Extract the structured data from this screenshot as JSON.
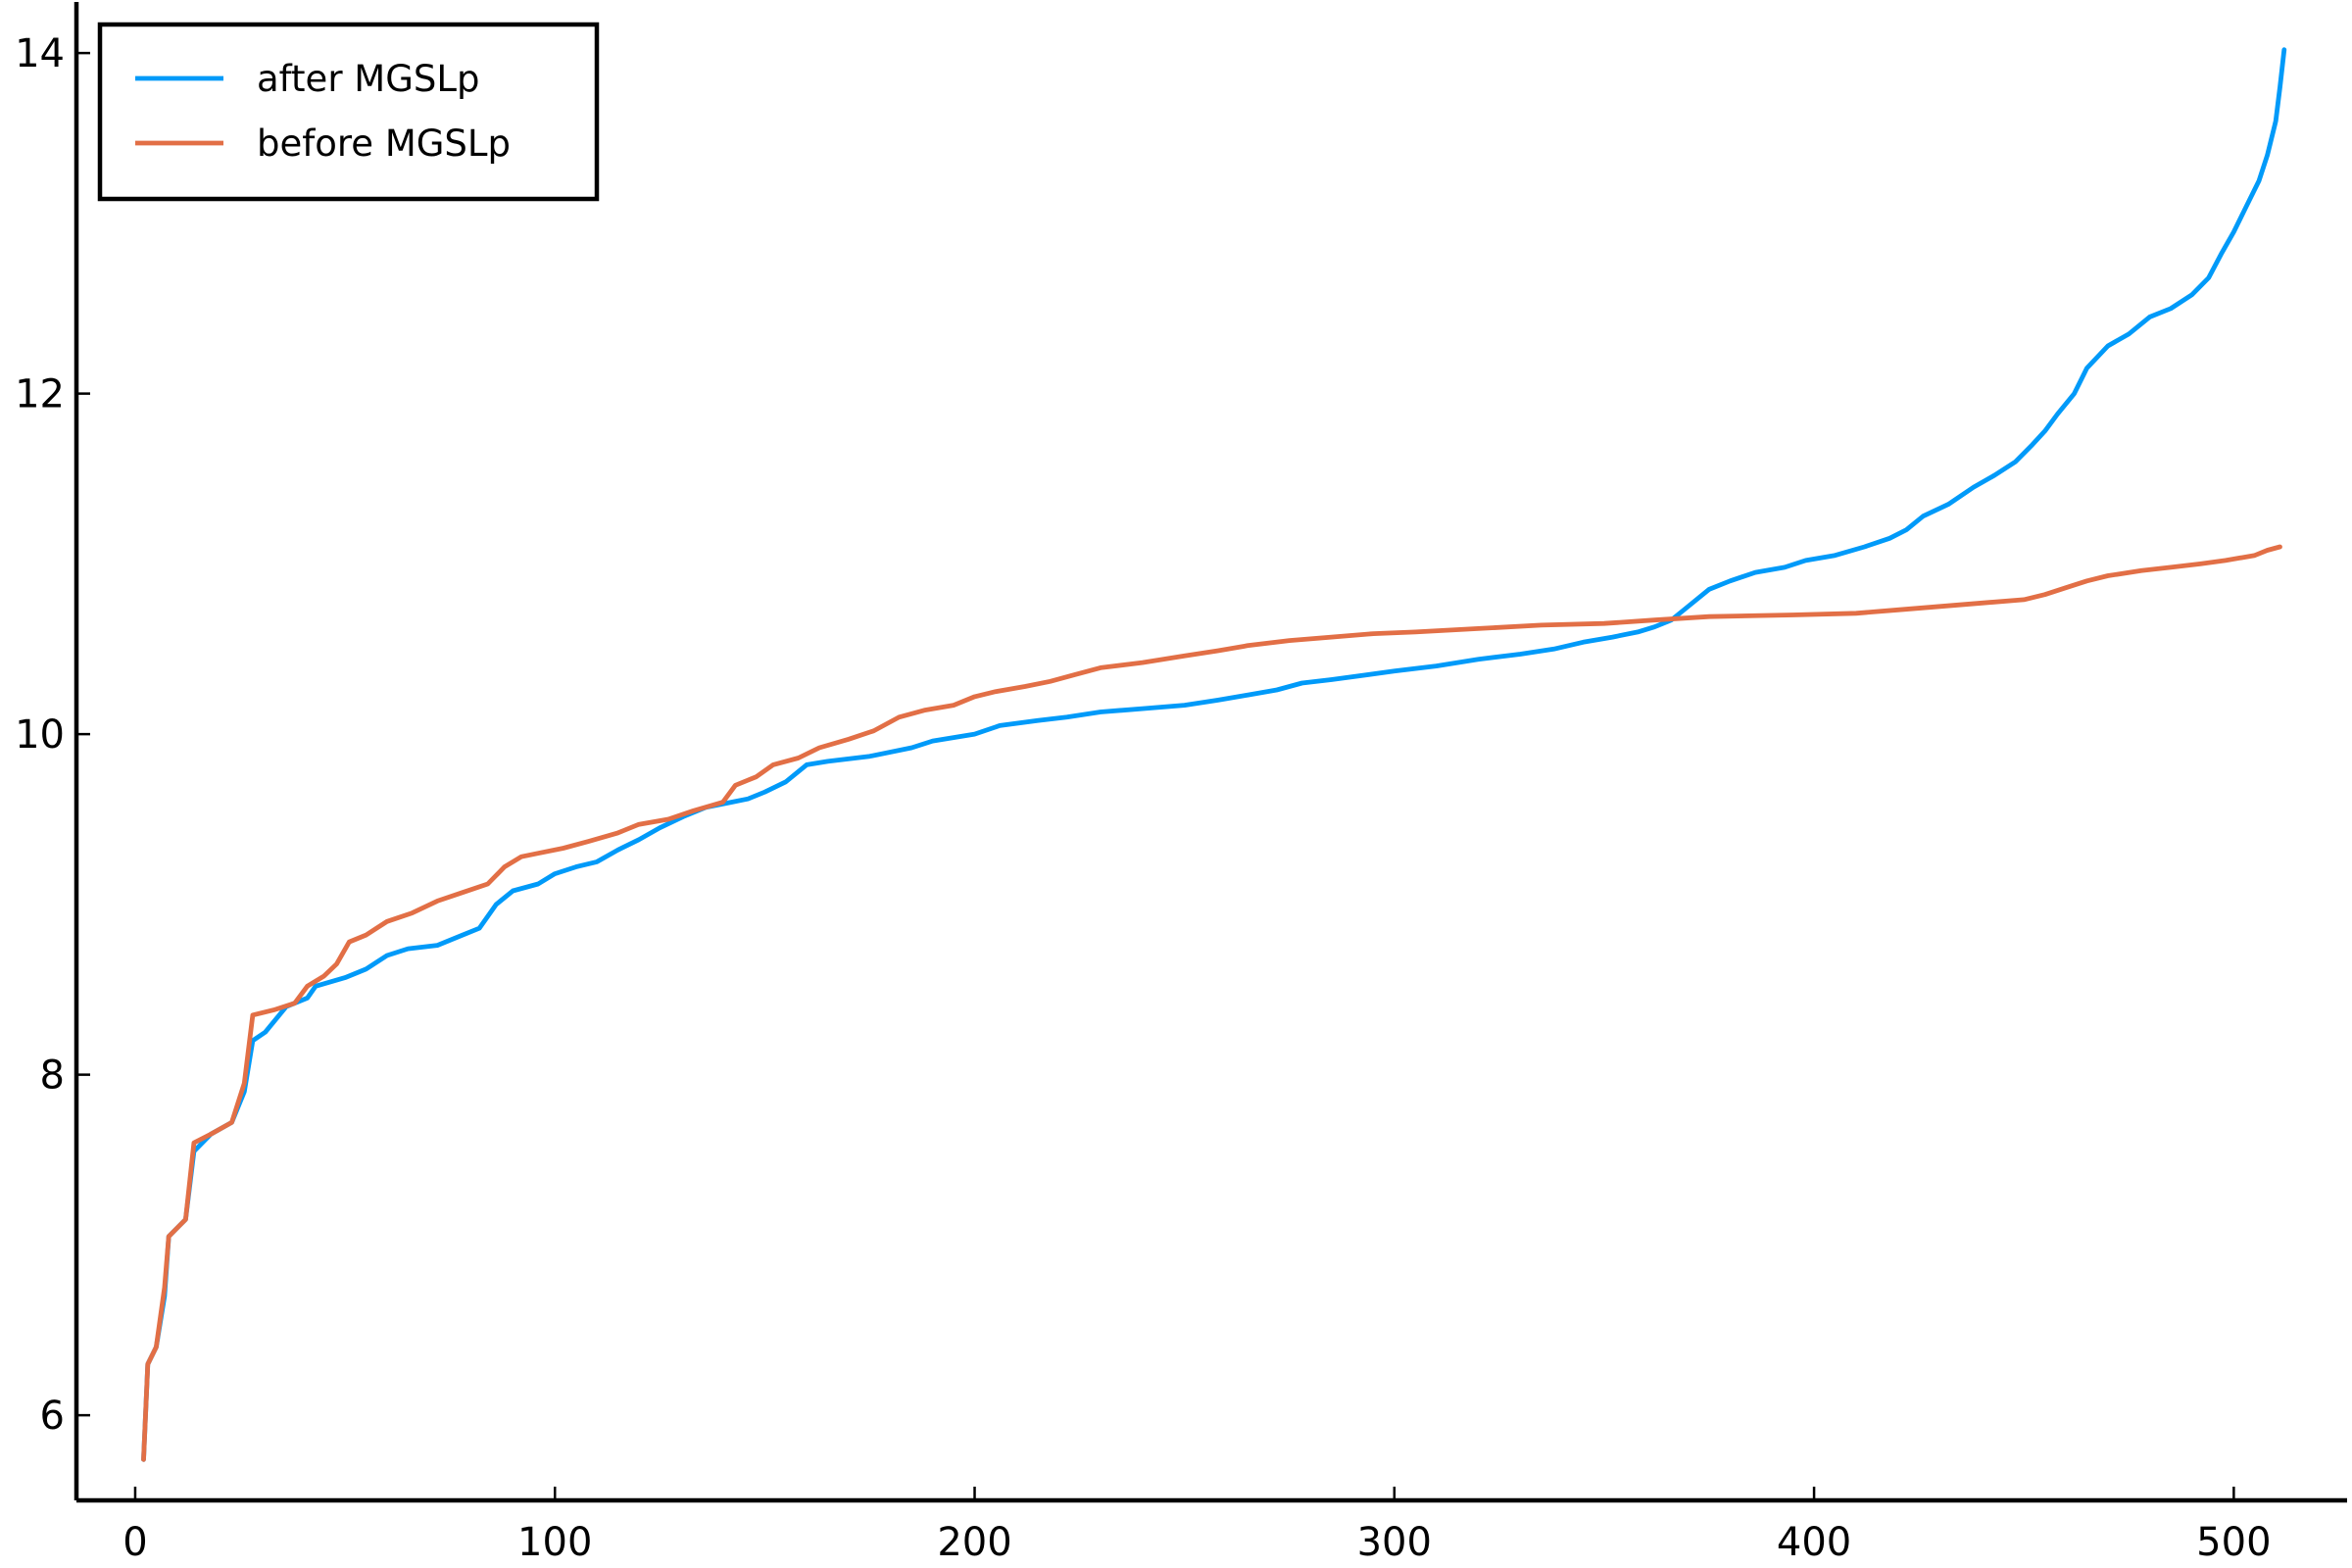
{
  "chart_data": {
    "type": "line",
    "title": "",
    "xlabel": "",
    "ylabel": "",
    "xlim": [
      -14,
      527
    ],
    "ylim": [
      5.5,
      14.3
    ],
    "xticks": [
      0,
      100,
      200,
      300,
      400,
      500
    ],
    "yticks": [
      6,
      8,
      10,
      12,
      14
    ],
    "xtick_labels": [
      "0",
      "100",
      "200",
      "300",
      "400",
      "500"
    ],
    "ytick_labels": [
      "6",
      "8",
      "10",
      "12",
      "14"
    ],
    "grid": false,
    "legend_position": "top-left",
    "series": [
      {
        "name": "after MGSLp",
        "color": "#009af9",
        "points": [
          [
            2,
            5.74
          ],
          [
            3,
            6.3
          ],
          [
            5,
            6.4
          ],
          [
            7,
            6.7
          ],
          [
            8,
            7.05
          ],
          [
            10,
            7.1
          ],
          [
            12,
            7.15
          ],
          [
            14,
            7.55
          ],
          [
            18,
            7.65
          ],
          [
            23,
            7.72
          ],
          [
            26,
            7.9
          ],
          [
            28,
            8.2
          ],
          [
            31,
            8.25
          ],
          [
            36,
            8.4
          ],
          [
            41,
            8.45
          ],
          [
            43,
            8.52
          ],
          [
            50,
            8.57
          ],
          [
            55,
            8.62
          ],
          [
            60,
            8.7
          ],
          [
            65,
            8.74
          ],
          [
            72,
            8.76
          ],
          [
            78,
            8.82
          ],
          [
            82,
            8.86
          ],
          [
            86,
            9.0
          ],
          [
            90,
            9.08
          ],
          [
            96,
            9.12
          ],
          [
            100,
            9.18
          ],
          [
            105,
            9.22
          ],
          [
            110,
            9.25
          ],
          [
            115,
            9.32
          ],
          [
            120,
            9.38
          ],
          [
            125,
            9.45
          ],
          [
            131,
            9.52
          ],
          [
            136,
            9.57
          ],
          [
            142,
            9.6
          ],
          [
            146,
            9.62
          ],
          [
            150,
            9.66
          ],
          [
            155,
            9.72
          ],
          [
            160,
            9.82
          ],
          [
            165,
            9.84
          ],
          [
            175,
            9.87
          ],
          [
            185,
            9.92
          ],
          [
            190,
            9.96
          ],
          [
            200,
            10.0
          ],
          [
            206,
            10.05
          ],
          [
            215,
            10.08
          ],
          [
            222,
            10.1
          ],
          [
            230,
            10.13
          ],
          [
            240,
            10.15
          ],
          [
            250,
            10.17
          ],
          [
            258,
            10.2
          ],
          [
            265,
            10.23
          ],
          [
            272,
            10.26
          ],
          [
            278,
            10.3
          ],
          [
            285,
            10.32
          ],
          [
            300,
            10.37
          ],
          [
            310,
            10.4
          ],
          [
            320,
            10.44
          ],
          [
            330,
            10.47
          ],
          [
            338,
            10.5
          ],
          [
            345,
            10.54
          ],
          [
            352,
            10.57
          ],
          [
            358,
            10.6
          ],
          [
            362,
            10.63
          ],
          [
            366,
            10.67
          ],
          [
            370,
            10.75
          ],
          [
            375,
            10.85
          ],
          [
            380,
            10.9
          ],
          [
            386,
            10.95
          ],
          [
            393,
            10.98
          ],
          [
            398,
            11.02
          ],
          [
            405,
            11.05
          ],
          [
            412,
            11.1
          ],
          [
            418,
            11.15
          ],
          [
            422,
            11.2
          ],
          [
            426,
            11.28
          ],
          [
            432,
            11.35
          ],
          [
            438,
            11.45
          ],
          [
            443,
            11.52
          ],
          [
            448,
            11.6
          ],
          [
            452,
            11.7
          ],
          [
            455,
            11.78
          ],
          [
            458,
            11.88
          ],
          [
            462,
            12.0
          ],
          [
            465,
            12.15
          ],
          [
            470,
            12.28
          ],
          [
            475,
            12.35
          ],
          [
            480,
            12.45
          ],
          [
            485,
            12.5
          ],
          [
            490,
            12.58
          ],
          [
            494,
            12.68
          ],
          [
            497,
            12.82
          ],
          [
            500,
            12.95
          ],
          [
            503,
            13.1
          ],
          [
            506,
            13.25
          ],
          [
            508,
            13.4
          ],
          [
            510,
            13.6
          ],
          [
            511,
            13.8
          ],
          [
            512,
            14.02
          ]
        ]
      },
      {
        "name": "before MGSLp",
        "color": "#e26f46",
        "points": [
          [
            2,
            5.74
          ],
          [
            3,
            6.3
          ],
          [
            5,
            6.4
          ],
          [
            7,
            6.75
          ],
          [
            8,
            7.05
          ],
          [
            10,
            7.1
          ],
          [
            12,
            7.15
          ],
          [
            14,
            7.6
          ],
          [
            18,
            7.65
          ],
          [
            23,
            7.72
          ],
          [
            26,
            7.95
          ],
          [
            28,
            8.35
          ],
          [
            33,
            8.38
          ],
          [
            38,
            8.42
          ],
          [
            41,
            8.52
          ],
          [
            45,
            8.58
          ],
          [
            48,
            8.65
          ],
          [
            51,
            8.78
          ],
          [
            55,
            8.82
          ],
          [
            60,
            8.9
          ],
          [
            66,
            8.95
          ],
          [
            72,
            9.02
          ],
          [
            78,
            9.07
          ],
          [
            84,
            9.12
          ],
          [
            88,
            9.22
          ],
          [
            92,
            9.28
          ],
          [
            96,
            9.3
          ],
          [
            102,
            9.33
          ],
          [
            108,
            9.37
          ],
          [
            115,
            9.42
          ],
          [
            120,
            9.47
          ],
          [
            127,
            9.5
          ],
          [
            133,
            9.55
          ],
          [
            140,
            9.6
          ],
          [
            143,
            9.7
          ],
          [
            148,
            9.75
          ],
          [
            152,
            9.82
          ],
          [
            158,
            9.86
          ],
          [
            163,
            9.92
          ],
          [
            170,
            9.97
          ],
          [
            176,
            10.02
          ],
          [
            182,
            10.1
          ],
          [
            188,
            10.14
          ],
          [
            195,
            10.17
          ],
          [
            200,
            10.22
          ],
          [
            205,
            10.25
          ],
          [
            212,
            10.28
          ],
          [
            218,
            10.31
          ],
          [
            224,
            10.35
          ],
          [
            230,
            10.39
          ],
          [
            240,
            10.42
          ],
          [
            250,
            10.46
          ],
          [
            258,
            10.49
          ],
          [
            265,
            10.52
          ],
          [
            275,
            10.55
          ],
          [
            285,
            10.57
          ],
          [
            295,
            10.59
          ],
          [
            305,
            10.6
          ],
          [
            320,
            10.62
          ],
          [
            335,
            10.64
          ],
          [
            350,
            10.65
          ],
          [
            362,
            10.67
          ],
          [
            375,
            10.69
          ],
          [
            395,
            10.7
          ],
          [
            410,
            10.71
          ],
          [
            420,
            10.73
          ],
          [
            430,
            10.75
          ],
          [
            440,
            10.77
          ],
          [
            450,
            10.79
          ],
          [
            455,
            10.82
          ],
          [
            460,
            10.86
          ],
          [
            465,
            10.9
          ],
          [
            470,
            10.93
          ],
          [
            478,
            10.96
          ],
          [
            485,
            10.98
          ],
          [
            492,
            11.0
          ],
          [
            498,
            11.02
          ],
          [
            505,
            11.05
          ],
          [
            508,
            11.08
          ],
          [
            511,
            11.1
          ]
        ]
      }
    ]
  }
}
